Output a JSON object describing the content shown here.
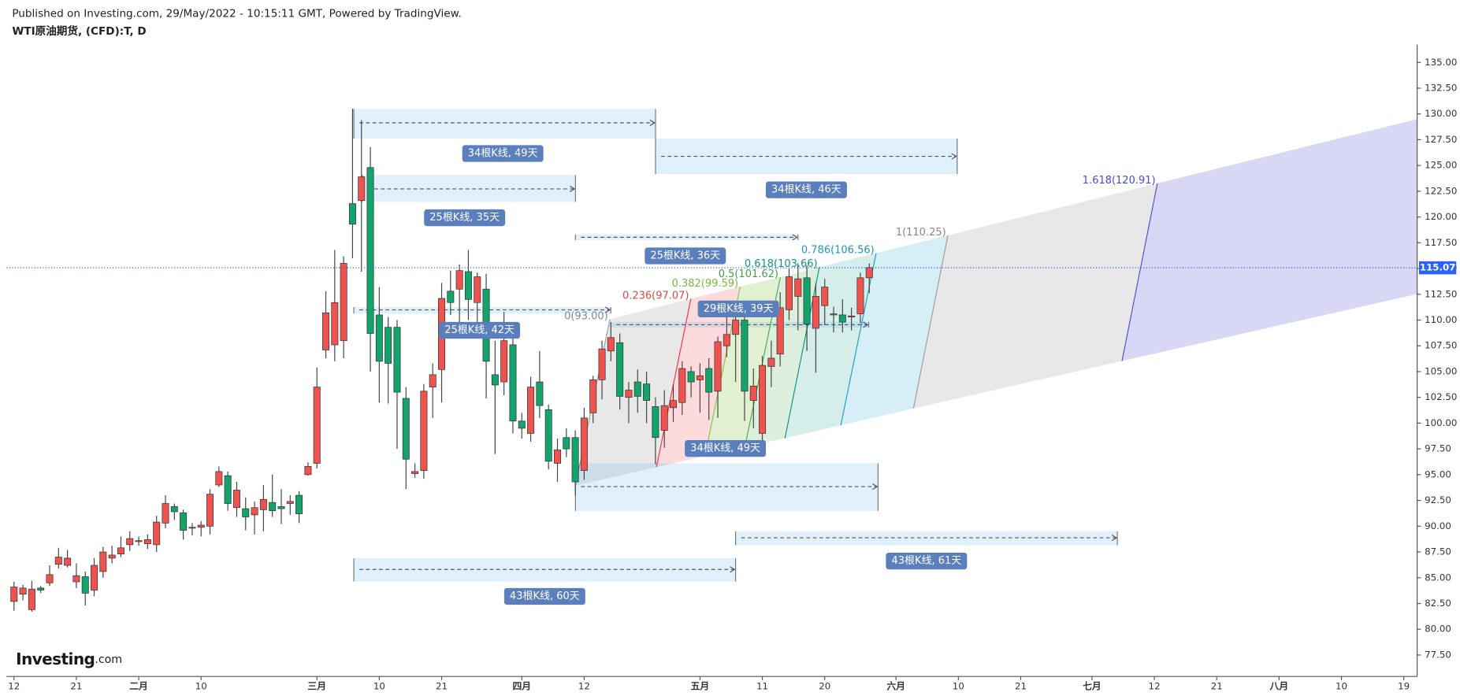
{
  "header": {
    "published": "Published on Investing.com, 29/May/2022 - 10:15:11 GMT, Powered by TradingView.",
    "symbol": "WTI原油期货, (CFD):T, D"
  },
  "logo": {
    "name": "Investing",
    "suffix": ".com"
  },
  "chart_data": {
    "type": "candlestick",
    "up_color": "#ef5350",
    "down_color": "#13a36b",
    "last_price": 115.07,
    "last_price_color": "#2962ff",
    "xlim": [
      -0.84,
      157.5
    ],
    "ylim": [
      75.42,
      136.72
    ],
    "xticks": [
      {
        "value": 0,
        "label": "12"
      },
      {
        "value": 7,
        "label": "21"
      },
      {
        "value": 14,
        "label": "二月"
      },
      {
        "value": 21,
        "label": "10"
      },
      {
        "value": 34,
        "label": "三月"
      },
      {
        "value": 41,
        "label": "10"
      },
      {
        "value": 48,
        "label": "21"
      },
      {
        "value": 57,
        "label": "四月"
      },
      {
        "value": 64,
        "label": "12"
      },
      {
        "value": 77,
        "label": "五月"
      },
      {
        "value": 84,
        "label": "11"
      },
      {
        "value": 91,
        "label": "20"
      },
      {
        "value": 99,
        "label": "六月"
      },
      {
        "value": 106,
        "label": "10"
      },
      {
        "value": 113,
        "label": "21"
      },
      {
        "value": 121,
        "label": "七月"
      },
      {
        "value": 128,
        "label": "12"
      },
      {
        "value": 135,
        "label": "21"
      },
      {
        "value": 142,
        "label": "八月"
      },
      {
        "value": 149,
        "label": "10"
      },
      {
        "value": 156,
        "label": "19"
      }
    ],
    "yticks": [
      {
        "value": 77.5,
        "label": "77.50"
      },
      {
        "value": 80,
        "label": "80.00"
      },
      {
        "value": 82.5,
        "label": "82.50"
      },
      {
        "value": 85,
        "label": "85.00"
      },
      {
        "value": 87.5,
        "label": "87.50"
      },
      {
        "value": 90,
        "label": "90.00"
      },
      {
        "value": 92.5,
        "label": "92.50"
      },
      {
        "value": 95,
        "label": "95.00"
      },
      {
        "value": 97.5,
        "label": "97.50"
      },
      {
        "value": 100,
        "label": "100.00"
      },
      {
        "value": 102.5,
        "label": "102.50"
      },
      {
        "value": 105,
        "label": "105.00"
      },
      {
        "value": 107.5,
        "label": "107.50"
      },
      {
        "value": 110,
        "label": "110.00"
      },
      {
        "value": 112.5,
        "label": "112.50"
      },
      {
        "value": 115,
        "label": "115.00"
      },
      {
        "value": 117.5,
        "label": "117.50"
      },
      {
        "value": 120,
        "label": "120.00"
      },
      {
        "value": 122.5,
        "label": "122.50"
      },
      {
        "value": 125,
        "label": "125.00"
      },
      {
        "value": 127.5,
        "label": "127.50"
      },
      {
        "value": 130,
        "label": "130.00"
      },
      {
        "value": 132.5,
        "label": "132.50"
      },
      {
        "value": 135,
        "label": "135.00"
      }
    ],
    "candles": {
      "x": [
        0,
        1,
        2,
        3,
        4,
        5,
        6,
        7,
        8,
        9,
        10,
        11,
        12,
        13,
        14,
        15,
        16,
        17,
        18,
        19,
        20,
        21,
        22,
        23,
        24,
        25,
        26,
        27,
        28,
        29,
        30,
        31,
        32,
        33,
        34,
        35,
        36,
        37,
        38,
        39,
        40,
        41,
        42,
        43,
        44,
        45,
        46,
        47,
        48,
        49,
        50,
        51,
        52,
        53,
        54,
        55,
        56,
        57,
        58,
        59,
        60,
        61,
        62,
        63,
        64,
        65,
        66,
        67,
        68,
        69,
        70,
        71,
        72,
        73,
        74,
        75,
        76,
        77,
        78,
        79,
        80,
        81,
        82,
        83,
        84,
        85,
        86,
        87,
        88,
        89,
        90,
        91,
        92,
        93,
        94,
        95,
        96
      ],
      "open": [
        82.7,
        83.4,
        81.9,
        84.0,
        84.5,
        86.3,
        86.2,
        84.6,
        85.1,
        83.8,
        85.6,
        86.9,
        87.3,
        88.2,
        88.5,
        88.3,
        88.2,
        90.3,
        91.9,
        91.3,
        89.8,
        89.9,
        90.0,
        94.0,
        94.9,
        91.8,
        91.7,
        91.1,
        91.6,
        92.3,
        91.9,
        92.2,
        93.0,
        95.0,
        96.1,
        107.1,
        107.6,
        108.0,
        121.3,
        121.6,
        124.8,
        110.5,
        109.3,
        109.3,
        102.4,
        95.1,
        95.4,
        103.5,
        105.2,
        112.8,
        113.0,
        114.7,
        111.7,
        113.0,
        104.7,
        104.0,
        107.6,
        100.2,
        99.0,
        104.0,
        101.3,
        96.1,
        98.6,
        98.6,
        95.4,
        101.0,
        104.2,
        107.0,
        107.8,
        102.5,
        104.0,
        103.8,
        101.6,
        99.3,
        101.5,
        102.0,
        105.0,
        104.2,
        105.3,
        103.1,
        107.5,
        108.6,
        110.0,
        102.2,
        99.0,
        105.5,
        106.7,
        111.0,
        112.3,
        114.1,
        109.2,
        111.4,
        110.6,
        110.5,
        110.3,
        110.6,
        114.1
      ],
      "high": [
        84.6,
        84.3,
        84.7,
        84.2,
        86.2,
        87.9,
        87.7,
        86.4,
        85.6,
        86.9,
        88.0,
        88.1,
        89.0,
        89.5,
        89.0,
        89.2,
        91.0,
        93.0,
        92.2,
        91.6,
        90.3,
        90.5,
        93.6,
        95.8,
        95.3,
        94.3,
        92.8,
        92.4,
        94.0,
        95.0,
        93.6,
        93.0,
        93.4,
        96.2,
        105.4,
        112.8,
        116.8,
        116.2,
        130.5,
        129.4,
        126.8,
        113.2,
        110.3,
        110.0,
        103.5,
        96.1,
        103.8,
        105.8,
        113.6,
        114.8,
        115.4,
        116.8,
        114.6,
        114.5,
        108.0,
        110.8,
        108.5,
        101.0,
        104.5,
        107.0,
        101.8,
        98.5,
        99.5,
        99.3,
        101.5,
        104.6,
        108.0,
        109.8,
        108.7,
        104.0,
        105.2,
        105.0,
        102.5,
        103.2,
        103.8,
        106.0,
        105.5,
        105.8,
        106.3,
        108.4,
        110.8,
        111.5,
        110.7,
        105.3,
        106.5,
        108.0,
        112.7,
        115.0,
        115.5,
        115.3,
        113.6,
        114.0,
        111.3,
        112.0,
        111.2,
        114.6,
        115.5
      ],
      "low": [
        81.8,
        82.8,
        81.7,
        83.5,
        84.2,
        85.9,
        86.0,
        84.0,
        82.3,
        83.2,
        85.0,
        86.4,
        87.0,
        87.6,
        88.1,
        87.8,
        87.5,
        89.8,
        90.6,
        88.7,
        89.1,
        89.0,
        89.2,
        93.8,
        91.5,
        90.9,
        89.6,
        89.2,
        89.5,
        90.9,
        90.2,
        91.1,
        90.3,
        94.9,
        95.6,
        106.3,
        106.0,
        106.3,
        116.0,
        114.7,
        105.0,
        102.0,
        101.9,
        97.5,
        93.6,
        94.7,
        94.6,
        100.5,
        102.0,
        110.5,
        108.6,
        110.0,
        109.5,
        102.4,
        97.0,
        102.7,
        99.0,
        98.5,
        98.2,
        100.5,
        95.5,
        94.3,
        96.7,
        93.0,
        94.5,
        100.0,
        102.3,
        106.0,
        101.3,
        100.0,
        101.0,
        100.0,
        96.0,
        97.6,
        100.1,
        100.8,
        102.5,
        101.0,
        100.3,
        100.5,
        106.4,
        104.0,
        100.2,
        99.5,
        97.9,
        103.5,
        105.5,
        110.0,
        109.0,
        107.0,
        104.9,
        109.5,
        108.8,
        108.8,
        109.0,
        109.7,
        112.6
      ],
      "close": [
        84.1,
        84.0,
        83.9,
        83.8,
        85.3,
        87.0,
        86.9,
        85.2,
        83.5,
        86.2,
        87.5,
        87.2,
        87.9,
        88.8,
        88.6,
        88.7,
        90.4,
        92.2,
        91.4,
        89.6,
        89.9,
        90.1,
        93.1,
        95.3,
        92.2,
        93.5,
        90.9,
        91.8,
        92.6,
        91.5,
        91.7,
        92.4,
        91.2,
        95.8,
        103.5,
        110.7,
        111.7,
        115.5,
        119.3,
        123.9,
        108.7,
        106.0,
        105.8,
        103.0,
        96.5,
        95.3,
        103.1,
        104.7,
        112.1,
        111.7,
        114.8,
        112.0,
        114.2,
        106.0,
        103.7,
        108.0,
        100.2,
        99.5,
        103.5,
        101.7,
        96.3,
        97.4,
        97.5,
        94.3,
        100.5,
        104.2,
        107.2,
        108.3,
        102.6,
        103.2,
        102.6,
        102.2,
        98.6,
        101.7,
        102.2,
        105.3,
        104.0,
        104.6,
        103.0,
        107.9,
        108.6,
        110.0,
        103.1,
        103.6,
        105.6,
        106.3,
        111.2,
        114.2,
        114.0,
        109.6,
        112.3,
        113.2,
        110.5,
        109.8,
        110.4,
        114.1,
        115.1
      ]
    },
    "annotations": {
      "ranges": [
        "34根K线, 49天",
        "34根K线, 46天",
        "25根K线, 35天",
        "25根K线, 36天",
        "25根K线, 42天",
        "29根K线, 39天",
        "34根K线, 49天",
        "43根K线, 61天",
        "43根K线, 60天"
      ],
      "fib_levels": [
        "0(93.00)",
        "0.236(97.07)",
        "0.382(99.59)",
        "0.5(101.62)",
        "0.618(103.66)",
        "0.786(106.56)",
        "1(110.25)",
        "1.618(120.91)"
      ]
    }
  }
}
